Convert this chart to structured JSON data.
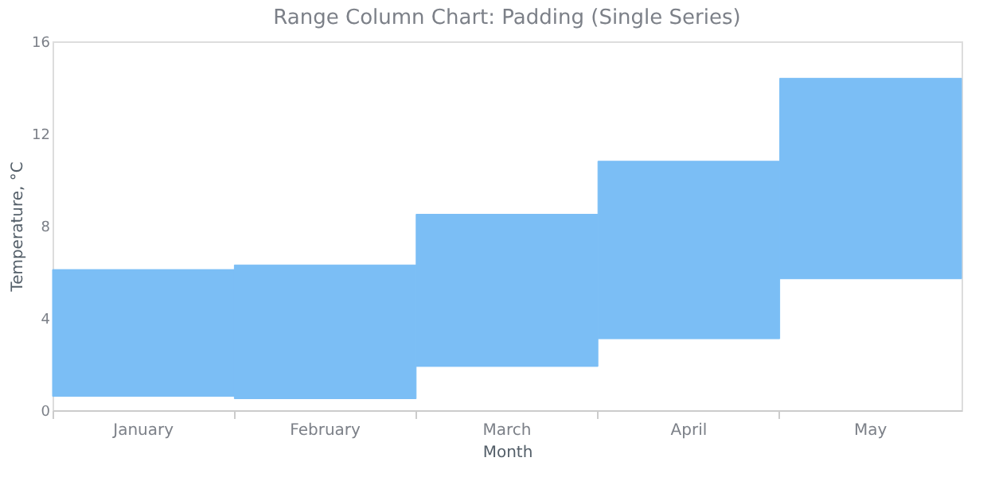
{
  "chart_data": {
    "type": "bar",
    "title": "Range Column Chart: Padding (Single Series)",
    "xlabel": "Month",
    "ylabel": "Temperature, °C",
    "categories": [
      "January",
      "February",
      "March",
      "April",
      "May"
    ],
    "base": [
      0.6,
      0.5,
      1.9,
      3.1,
      5.7
    ],
    "values": [
      5.5,
      5.8,
      6.6,
      7.7,
      8.7
    ],
    "color": "#7bbef5",
    "ylim": [
      0,
      16
    ],
    "yticks": [
      0,
      4,
      8,
      12,
      16
    ],
    "grid": false
  }
}
